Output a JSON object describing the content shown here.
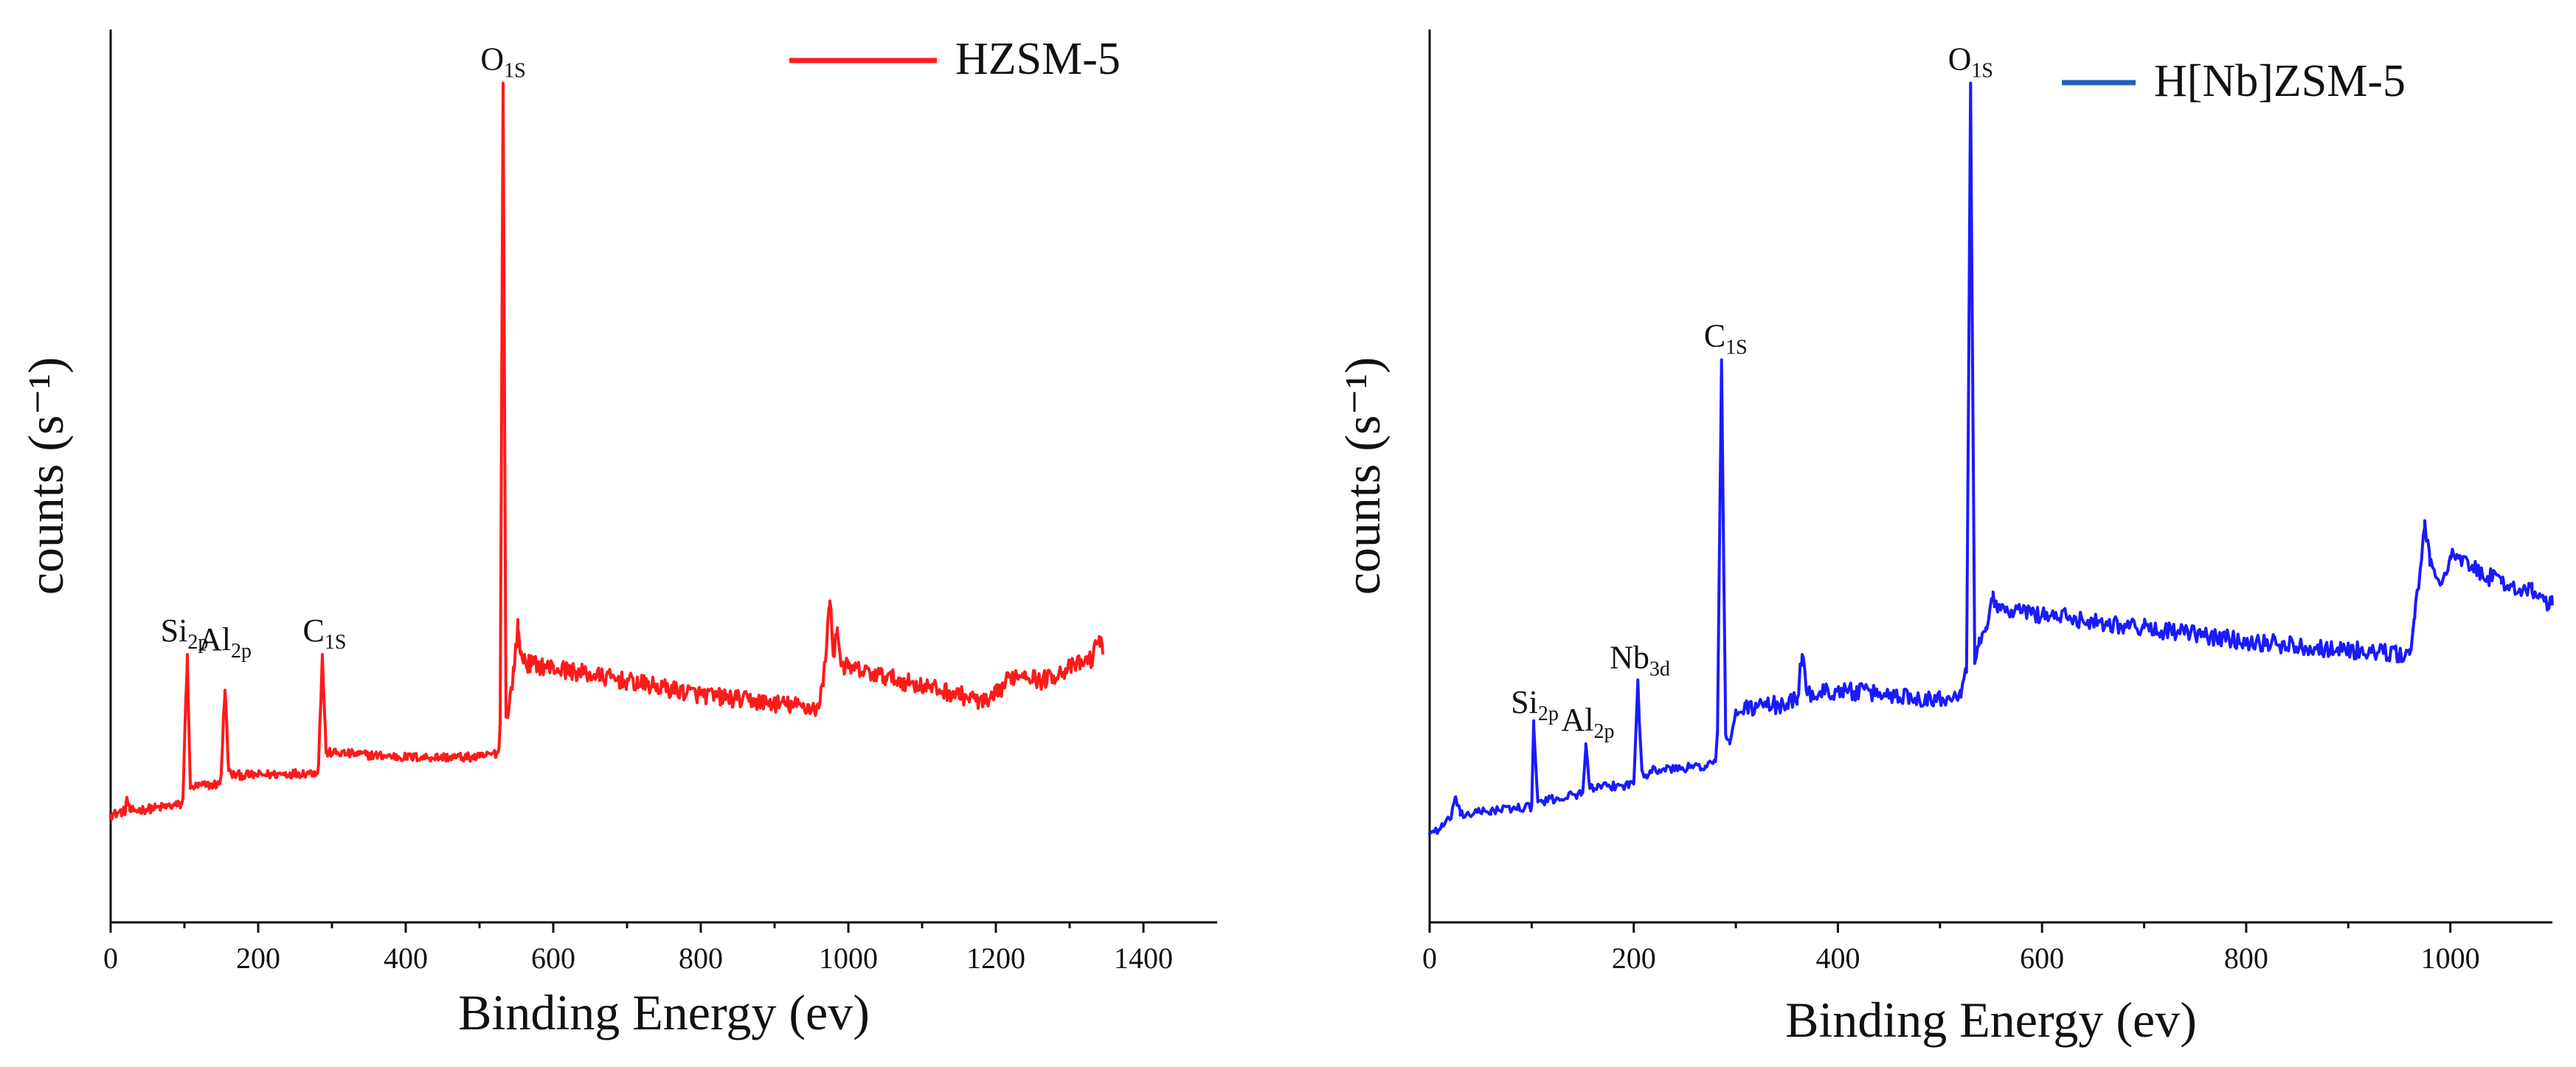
{
  "chart_data": [
    {
      "type": "line",
      "title": "",
      "xlabel": "Binding Energy (ev)",
      "ylabel": "counts (s⁻¹)",
      "xlim": [
        0,
        1500
      ],
      "ylim": [
        0,
        100
      ],
      "x_ticks": [
        0,
        200,
        400,
        600,
        800,
        1000,
        1200,
        1400
      ],
      "grid": false,
      "legend": {
        "position": "top-right",
        "entries": [
          {
            "label": "HZSM-5",
            "color": "#ff1a1a"
          }
        ]
      },
      "series": [
        {
          "name": "HZSM-5",
          "color": "#ff1a1a",
          "x": [
            0,
            20,
            22,
            26,
            30,
            60,
            96,
            98,
            104,
            108,
            112,
            148,
            150,
            155,
            160,
            164,
            200,
            280,
            282,
            287,
            292,
            300,
            400,
            500,
            525,
            528,
            532,
            536,
            540,
            546,
            552,
            556,
            565,
            600,
            700,
            800,
            900,
            960,
            966,
            975,
            980,
            985,
            990,
            1000,
            1050,
            1100,
            1150,
            1190,
            1200,
            1220,
            1240,
            1260,
            1300,
            1330,
            1340,
            1345
          ],
          "y": [
            12,
            12.5,
            14,
            12.5,
            12.5,
            12.8,
            13.2,
            14,
            30,
            15,
            15.2,
            15.5,
            17,
            26,
            17,
            16.5,
            16.5,
            16.8,
            18,
            30,
            19,
            19,
            18.5,
            18.5,
            19,
            22,
            94,
            23,
            24,
            28,
            33,
            30,
            29,
            28.5,
            27,
            25.5,
            24.5,
            24,
            27,
            36,
            30,
            33,
            29,
            28.5,
            27.5,
            26.5,
            25.5,
            24.5,
            25.5,
            27.5,
            28,
            27,
            28.5,
            29.5,
            32,
            30
          ]
        }
      ],
      "peak_labels": [
        {
          "text": "Si",
          "sub": "2p",
          "x": 100,
          "y": 30
        },
        {
          "text": "Al",
          "sub": "2p",
          "x": 155,
          "y": 29
        },
        {
          "text": "C",
          "sub": "1S",
          "x": 290,
          "y": 30
        },
        {
          "text": "O",
          "sub": "1S",
          "x": 532,
          "y": 94
        }
      ]
    },
    {
      "type": "line",
      "title": "",
      "xlabel": "Binding Energy (ev)",
      "ylabel": "counts (s⁻¹)",
      "xlim": [
        0,
        1100
      ],
      "ylim": [
        0,
        100
      ],
      "x_ticks": [
        0,
        200,
        400,
        600,
        800,
        1000
      ],
      "grid": false,
      "legend": {
        "position": "top-right",
        "entries": [
          {
            "label": "H[Nb]ZSM-5",
            "color": "#1f5fbf"
          }
        ]
      },
      "series": [
        {
          "name": "H[Nb]ZSM-5",
          "color": "#1a1aff",
          "x": [
            0,
            10,
            20,
            25,
            30,
            60,
            100,
            102,
            106,
            110,
            150,
            153,
            157,
            161,
            200,
            204,
            208,
            212,
            216,
            270,
            280,
            282,
            286,
            290,
            294,
            300,
            310,
            350,
            360,
            365,
            370,
            400,
            450,
            500,
            520,
            526,
            530,
            534,
            538,
            545,
            552,
            556,
            565,
            600,
            700,
            800,
            900,
            950,
            960,
            965,
            972,
            975,
            980,
            990,
            1000,
            1050,
            1080,
            1100
          ],
          "y": [
            10,
            10.5,
            11.5,
            14,
            12,
            12.5,
            13,
            22,
            13.5,
            13.5,
            14.5,
            20,
            15,
            15,
            15.5,
            27,
            17,
            16.5,
            17,
            17.5,
            18,
            21,
            63,
            21,
            20,
            23.5,
            24,
            24.5,
            25,
            30,
            25.5,
            26,
            25.5,
            25,
            26,
            28,
            94,
            29,
            31,
            33,
            37,
            35,
            35,
            34.5,
            33,
            31.5,
            30.5,
            30,
            30,
            34,
            41,
            45,
            40,
            38,
            41,
            38,
            37,
            35.5
          ]
        }
      ],
      "peak_labels": [
        {
          "text": "Si",
          "sub": "2p",
          "x": 103,
          "y": 22
        },
        {
          "text": "Al",
          "sub": "2p",
          "x": 155,
          "y": 20
        },
        {
          "text": "Nb",
          "sub": "3d",
          "x": 206,
          "y": 27
        },
        {
          "text": "C",
          "sub": "1S",
          "x": 290,
          "y": 63
        },
        {
          "text": "O",
          "sub": "1S",
          "x": 530,
          "y": 94
        }
      ]
    }
  ]
}
